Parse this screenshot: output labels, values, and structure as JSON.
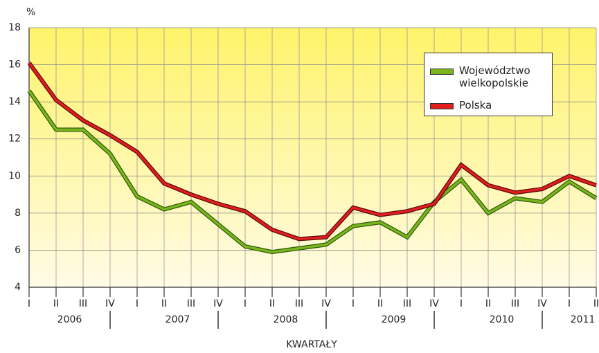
{
  "chart_data": {
    "type": "line",
    "y_unit": "%",
    "x_label": "KWARTAŁY",
    "categories": [
      "I",
      "II",
      "III",
      "IV",
      "I",
      "II",
      "III",
      "IV",
      "I",
      "II",
      "III",
      "IV",
      "I",
      "II",
      "III",
      "IV",
      "I",
      "II",
      "III",
      "IV",
      "I",
      "II"
    ],
    "years": [
      "2006",
      "2007",
      "2008",
      "2009",
      "2010",
      "2011"
    ],
    "series": [
      {
        "name": "Województwo wielkopolskie",
        "color": "#7ab51d",
        "values": [
          14.6,
          12.5,
          12.5,
          11.2,
          8.9,
          8.2,
          8.6,
          7.4,
          6.2,
          5.9,
          6.1,
          6.3,
          7.3,
          7.5,
          6.7,
          8.6,
          9.8,
          8.0,
          8.8,
          8.6,
          9.7,
          8.8
        ]
      },
      {
        "name": "Polska",
        "color": "#e01e1e",
        "values": [
          16.1,
          14.1,
          13.0,
          12.2,
          11.3,
          9.6,
          9.0,
          8.5,
          8.1,
          7.1,
          6.6,
          6.7,
          8.3,
          7.9,
          8.1,
          8.5,
          10.6,
          9.5,
          9.1,
          9.3,
          10.0,
          9.5
        ]
      }
    ],
    "ylim": [
      4,
      18
    ],
    "yticks": [
      4,
      6,
      8,
      10,
      12,
      14,
      16,
      18
    ],
    "grid": true
  }
}
